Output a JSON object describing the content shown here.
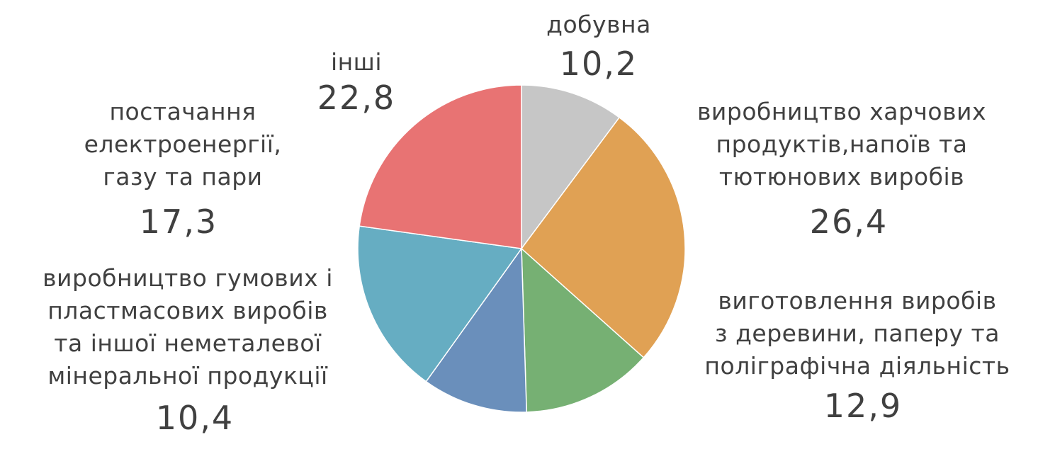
{
  "chart_data": {
    "type": "pie",
    "categories": [
      "добувна",
      "виробництво харчових\nпродуктів,напоїв та\nтютюнових виробів",
      "виготовлення виробів\nз деревини, паперу та\nполіграфічна діяльність",
      "виробництво гумових і\nпластмасових виробів\nта іншої неметалевої\nмінеральної продукції",
      "постачання\nелектроенергії,\nгазу та пари",
      "інші"
    ],
    "values": [
      10.2,
      26.4,
      12.9,
      10.4,
      17.3,
      22.8
    ],
    "value_labels": [
      "10,2",
      "26,4",
      "12,9",
      "10,4",
      "17,3",
      "22,8"
    ],
    "colors": [
      "#c6c6c6",
      "#e0a154",
      "#76b073",
      "#6a8fbb",
      "#66adc2",
      "#e87373"
    ]
  }
}
